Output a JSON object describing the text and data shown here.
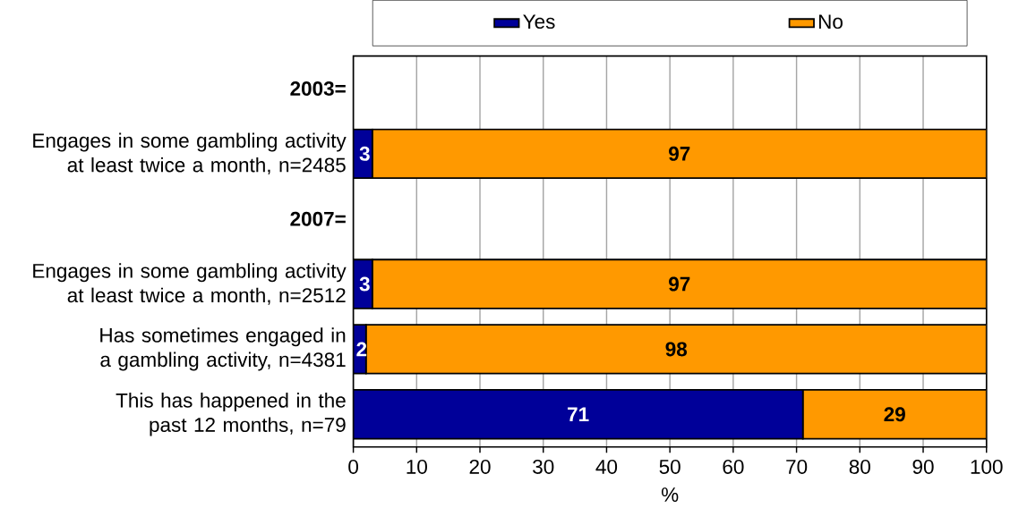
{
  "chart_data": {
    "type": "bar",
    "orientation": "horizontal",
    "stacked": true,
    "categories": [
      "2003=",
      "Engages in some gambling activity at least twice a month, n=2485",
      "2007=",
      "Engages in some gambling activity at least twice a month, n=2512",
      "Has sometimes engaged in a gambling activity, n=4381",
      "This has happened in the past 12 months, n=79"
    ],
    "series": [
      {
        "name": "Yes",
        "color": "#000099",
        "values": [
          null,
          3,
          null,
          3,
          2,
          71
        ]
      },
      {
        "name": "No",
        "color": "#ff9900",
        "values": [
          null,
          97,
          null,
          97,
          98,
          29
        ]
      }
    ],
    "xlabel": "%",
    "xlim": [
      0,
      100
    ],
    "xticks": [
      0,
      10,
      20,
      30,
      40,
      50,
      60,
      70,
      80,
      90,
      100
    ],
    "grid": "x",
    "legend": "top",
    "data_labels": true
  }
}
